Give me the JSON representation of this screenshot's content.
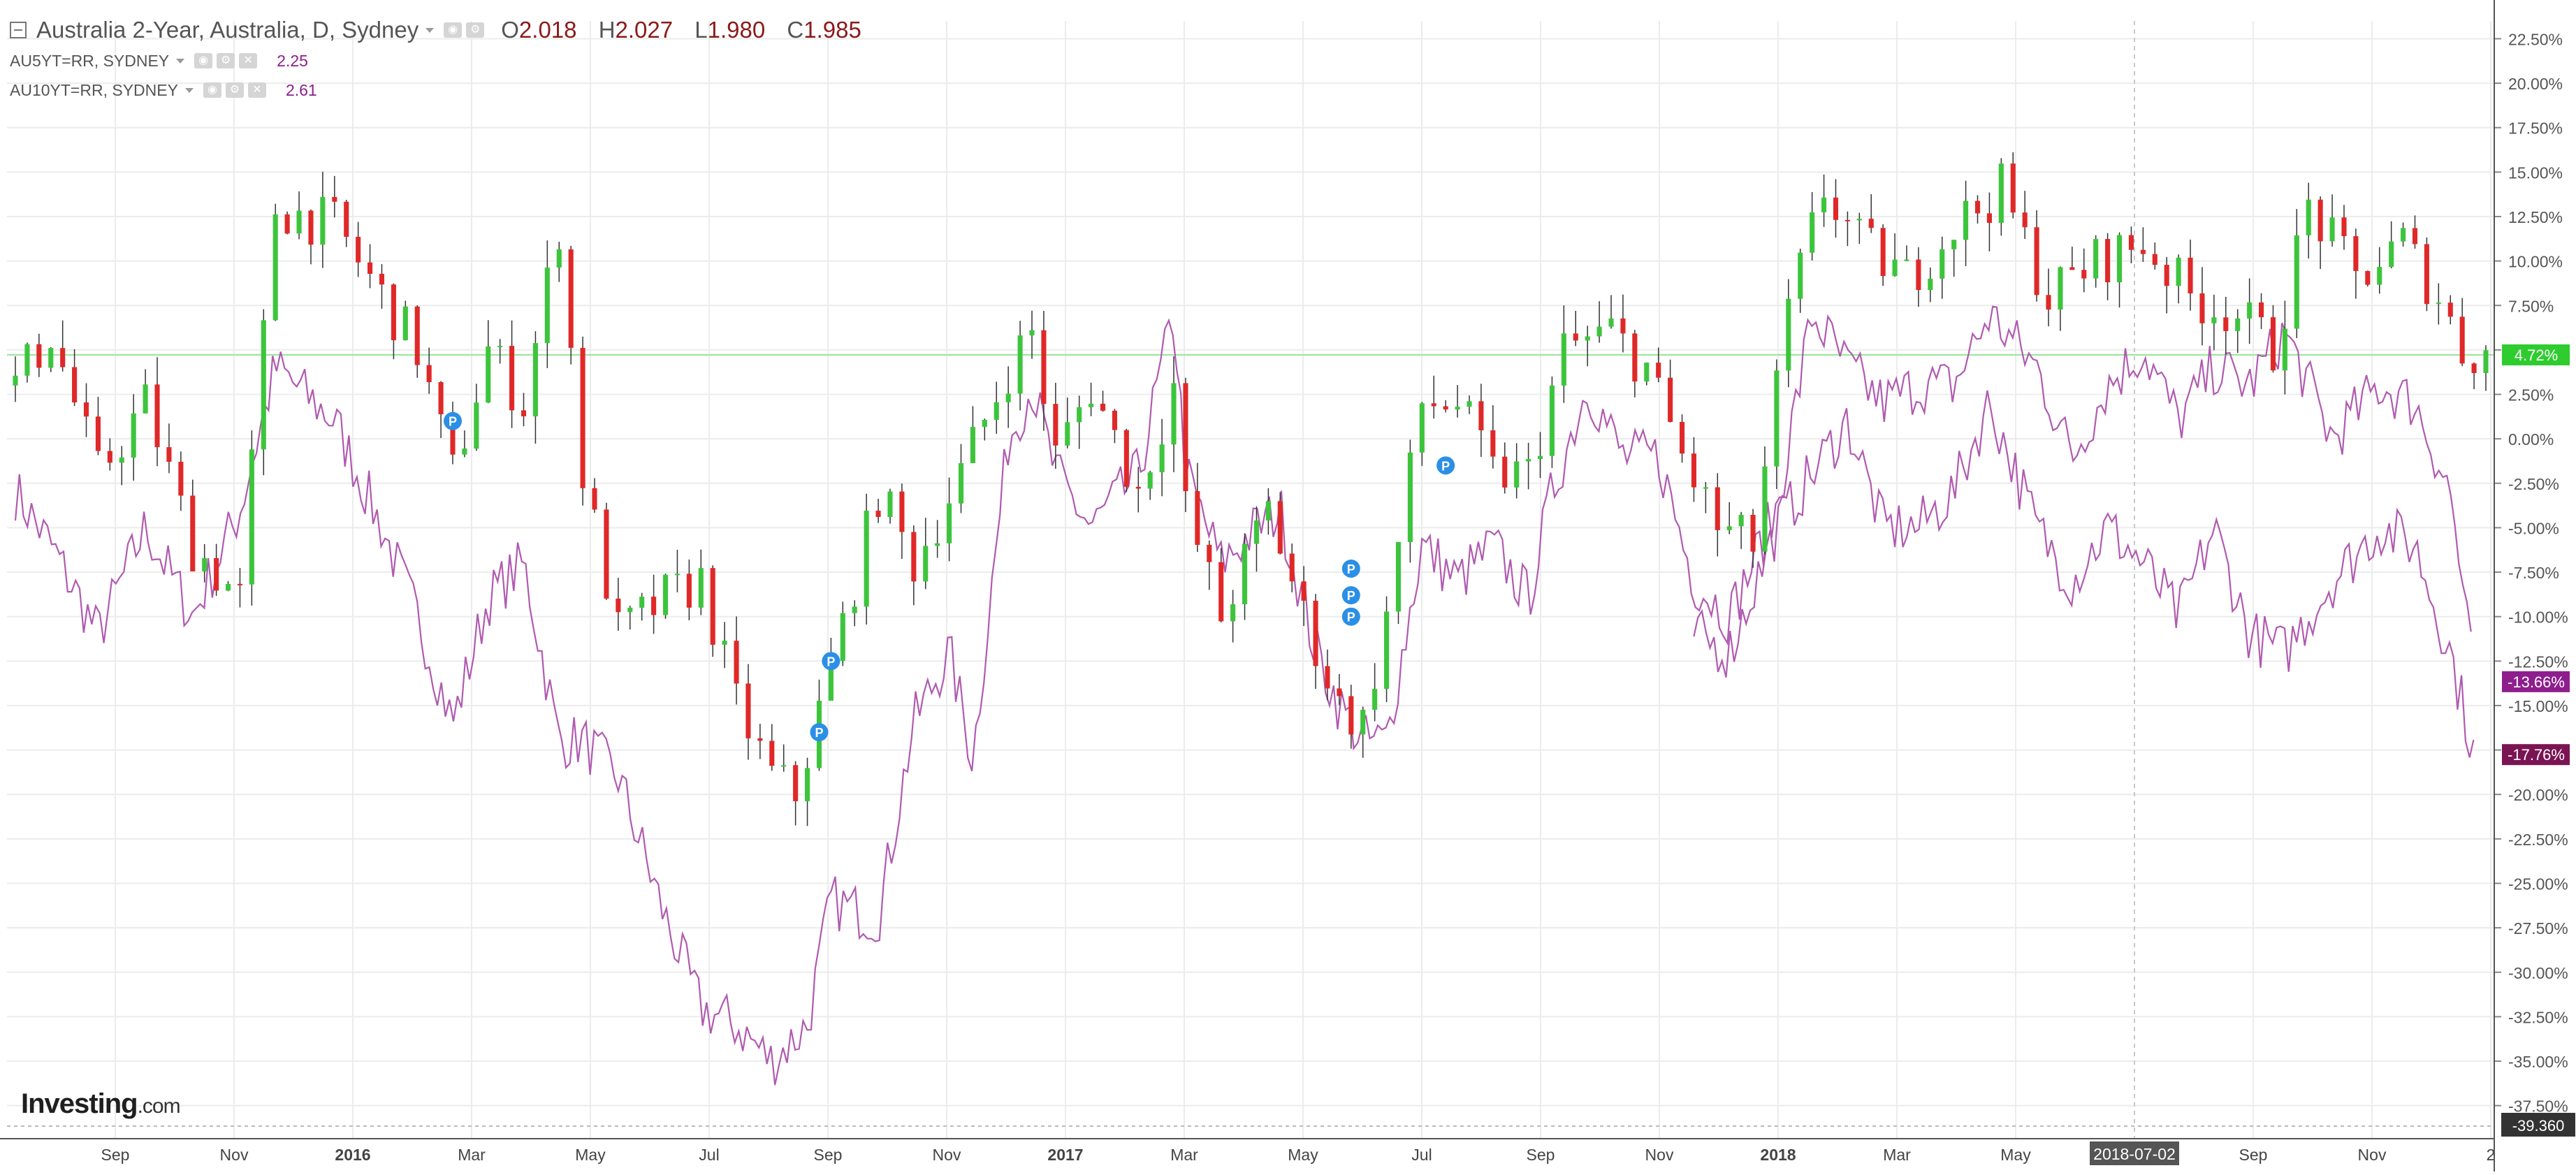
{
  "header": {
    "symbol_title": "Australia 2-Year, Australia, D, Sydney",
    "ohlc": [
      {
        "label": "O",
        "value": "2.018"
      },
      {
        "label": "H",
        "value": "2.027"
      },
      {
        "label": "L",
        "value": "1.980"
      },
      {
        "label": "C",
        "value": "1.985"
      }
    ],
    "comparisons": [
      {
        "name": "AU5YT=RR, SYDNEY",
        "value": "2.25"
      },
      {
        "name": "AU10YT=RR, SYDNEY",
        "value": "2.61"
      }
    ]
  },
  "branding": {
    "logo": "Investing",
    "logo_suffix": ".com"
  },
  "colors": {
    "up": "#3cc53c",
    "down": "#e02828",
    "compare": "#b05ab0",
    "badge_green": "#2ecc2e",
    "badge_purple": "#8e1e8e",
    "badge_darkpurple": "#7a1452",
    "marker": "#2b8fe6",
    "price_line": "#9ae59a",
    "grid": "#ececec"
  },
  "chart_data": {
    "type": "candlestick_with_comparison_lines",
    "x_axis": {
      "tick_labels": [
        "Sep",
        "Nov",
        "2016",
        "Mar",
        "May",
        "Jul",
        "Sep",
        "Nov",
        "2017",
        "Mar",
        "May",
        "Jul",
        "Sep",
        "Nov",
        "2018",
        "Mar",
        "May",
        "2018-07-02",
        "Sep",
        "Nov",
        "2"
      ]
    },
    "y_axis": {
      "unit": "%",
      "range": [
        -39.36,
        23.5
      ],
      "tick_labels": [
        "22.50%",
        "20.00%",
        "17.50%",
        "15.00%",
        "12.50%",
        "10.00%",
        "7.50%",
        "5.00%",
        "2.50%",
        "0.00%",
        "-2.50%",
        "-5.00%",
        "-7.50%",
        "-10.00%",
        "-12.50%",
        "-15.00%",
        "-17.50%",
        "-20.00%",
        "-22.50%",
        "-25.00%",
        "-27.50%",
        "-30.00%",
        "-32.50%",
        "-35.00%",
        "-37.50%"
      ],
      "tick_values": [
        22.5,
        20,
        17.5,
        15,
        12.5,
        10,
        7.5,
        5,
        2.5,
        0,
        -2.5,
        -5,
        -7.5,
        -10,
        -12.5,
        -15,
        -17.5,
        -20,
        -22.5,
        -25,
        -27.5,
        -30,
        -32.5,
        -35,
        -37.5
      ],
      "bottom_label": "-39.360"
    },
    "badges": [
      {
        "text": "4.72%",
        "value": 4.72,
        "color": "badge_green"
      },
      {
        "text": "-13.66%",
        "value": -13.66,
        "color": "badge_purple"
      },
      {
        "text": "-17.76%",
        "value": -17.76,
        "color": "badge_darkpurple"
      }
    ],
    "main_series_anchors": [
      [
        0,
        3
      ],
      [
        3,
        6
      ],
      [
        7,
        -2
      ],
      [
        11,
        2
      ],
      [
        15,
        -6
      ],
      [
        19,
        -9
      ],
      [
        22,
        13
      ],
      [
        27,
        12
      ],
      [
        31,
        8
      ],
      [
        34,
        5
      ],
      [
        37,
        -2
      ],
      [
        40,
        5
      ],
      [
        43,
        2
      ],
      [
        46,
        12
      ],
      [
        48,
        -2
      ],
      [
        51,
        -11
      ],
      [
        55,
        -9
      ],
      [
        58,
        -8
      ],
      [
        61,
        -15
      ],
      [
        64,
        -19
      ],
      [
        66,
        -20
      ],
      [
        69,
        -13
      ],
      [
        73,
        -3
      ],
      [
        76,
        -7
      ],
      [
        80,
        -2
      ],
      [
        84,
        4
      ],
      [
        86,
        6
      ],
      [
        88,
        -1
      ],
      [
        91,
        3
      ],
      [
        95,
        -3
      ],
      [
        98,
        3
      ],
      [
        99,
        -4
      ],
      [
        102,
        -10
      ],
      [
        106,
        -4
      ],
      [
        109,
        -10
      ],
      [
        112,
        -15
      ],
      [
        114,
        -16
      ],
      [
        116,
        -10
      ],
      [
        119,
        2
      ],
      [
        122,
        2
      ],
      [
        125,
        -2
      ],
      [
        128,
        -2
      ],
      [
        131,
        5
      ],
      [
        135,
        6
      ],
      [
        138,
        4
      ],
      [
        141,
        -1
      ],
      [
        144,
        -5
      ],
      [
        147,
        -6
      ],
      [
        150,
        7
      ],
      [
        153,
        14
      ],
      [
        156,
        11
      ],
      [
        160,
        9
      ],
      [
        164,
        12
      ],
      [
        168,
        14
      ],
      [
        172,
        8
      ],
      [
        176,
        10
      ],
      [
        180,
        11
      ],
      [
        184,
        8
      ],
      [
        188,
        7
      ],
      [
        191,
        5
      ],
      [
        194,
        13
      ],
      [
        198,
        9
      ],
      [
        202,
        11
      ],
      [
        205,
        8
      ],
      [
        207,
        5
      ],
      [
        209,
        4.7
      ]
    ],
    "compare_5y_anchors": [
      [
        0,
        -3
      ],
      [
        3,
        -6
      ],
      [
        7,
        -11
      ],
      [
        11,
        -5
      ],
      [
        15,
        -10
      ],
      [
        19,
        -4
      ],
      [
        22,
        4
      ],
      [
        27,
        1
      ],
      [
        31,
        -5
      ],
      [
        34,
        -10
      ],
      [
        37,
        -16
      ],
      [
        40,
        -9
      ],
      [
        43,
        -7
      ],
      [
        46,
        -17
      ],
      [
        48,
        -17
      ],
      [
        51,
        -19
      ],
      [
        55,
        -27
      ],
      [
        58,
        -32
      ],
      [
        61,
        -33
      ],
      [
        64,
        -35
      ],
      [
        67,
        -33
      ],
      [
        69,
        -26
      ],
      [
        73,
        -27
      ],
      [
        76,
        -16
      ],
      [
        79,
        -12
      ],
      [
        81,
        -18
      ],
      [
        84,
        0
      ],
      [
        86,
        3
      ],
      [
        88,
        -2
      ],
      [
        91,
        -5
      ],
      [
        95,
        -2
      ],
      [
        98,
        7
      ],
      [
        99,
        -2
      ],
      [
        102,
        -7
      ],
      [
        105,
        -5
      ],
      [
        107,
        -4
      ],
      [
        110,
        -12
      ],
      [
        112,
        -15
      ],
      [
        114,
        -17
      ],
      [
        116,
        -17
      ],
      [
        119,
        -6
      ],
      [
        122,
        -8
      ],
      [
        125,
        -6
      ],
      [
        128,
        -9
      ],
      [
        130,
        -3
      ],
      [
        133,
        3
      ],
      [
        136,
        -1
      ],
      [
        139,
        -1
      ],
      [
        142,
        -8
      ],
      [
        145,
        -10
      ],
      [
        149,
        -4
      ],
      [
        152,
        7
      ],
      [
        155,
        4
      ],
      [
        158,
        2
      ],
      [
        161,
        3
      ],
      [
        164,
        3
      ],
      [
        167,
        7
      ],
      [
        171,
        4
      ],
      [
        174,
        -1
      ],
      [
        177,
        3
      ],
      [
        180,
        5
      ],
      [
        183,
        1
      ],
      [
        186,
        4
      ],
      [
        189,
        3
      ],
      [
        192,
        6
      ],
      [
        196,
        0
      ],
      [
        200,
        3
      ],
      [
        203,
        2
      ],
      [
        206,
        -3
      ],
      [
        208,
        -13.66
      ]
    ],
    "compare_10y_anchors": [
      [
        142,
        -11
      ],
      [
        145,
        -12
      ],
      [
        149,
        -5
      ],
      [
        152,
        -2
      ],
      [
        155,
        1
      ],
      [
        158,
        -5
      ],
      [
        161,
        -5
      ],
      [
        164,
        -3
      ],
      [
        167,
        2
      ],
      [
        171,
        -5
      ],
      [
        174,
        -8
      ],
      [
        177,
        -5
      ],
      [
        180,
        -7
      ],
      [
        183,
        -10
      ],
      [
        186,
        -5
      ],
      [
        189,
        -11
      ],
      [
        192,
        -12
      ],
      [
        196,
        -8
      ],
      [
        200,
        -5
      ],
      [
        203,
        -6
      ],
      [
        206,
        -12
      ],
      [
        208,
        -17.76
      ]
    ],
    "markers": [
      {
        "label": "P",
        "bar": 37,
        "y": 1
      },
      {
        "label": "P",
        "bar": 69,
        "y": -12.5
      },
      {
        "label": "P",
        "bar": 68,
        "y": -16.5
      },
      {
        "label": "P",
        "bar": 113,
        "y": -7.3
      },
      {
        "label": "P",
        "bar": 113,
        "y": -8.8
      },
      {
        "label": "P",
        "bar": 113,
        "y": -10
      },
      {
        "label": "P",
        "bar": 121,
        "y": -1.5
      }
    ],
    "cursor_x_label": "2018-07-02",
    "grid": true
  }
}
